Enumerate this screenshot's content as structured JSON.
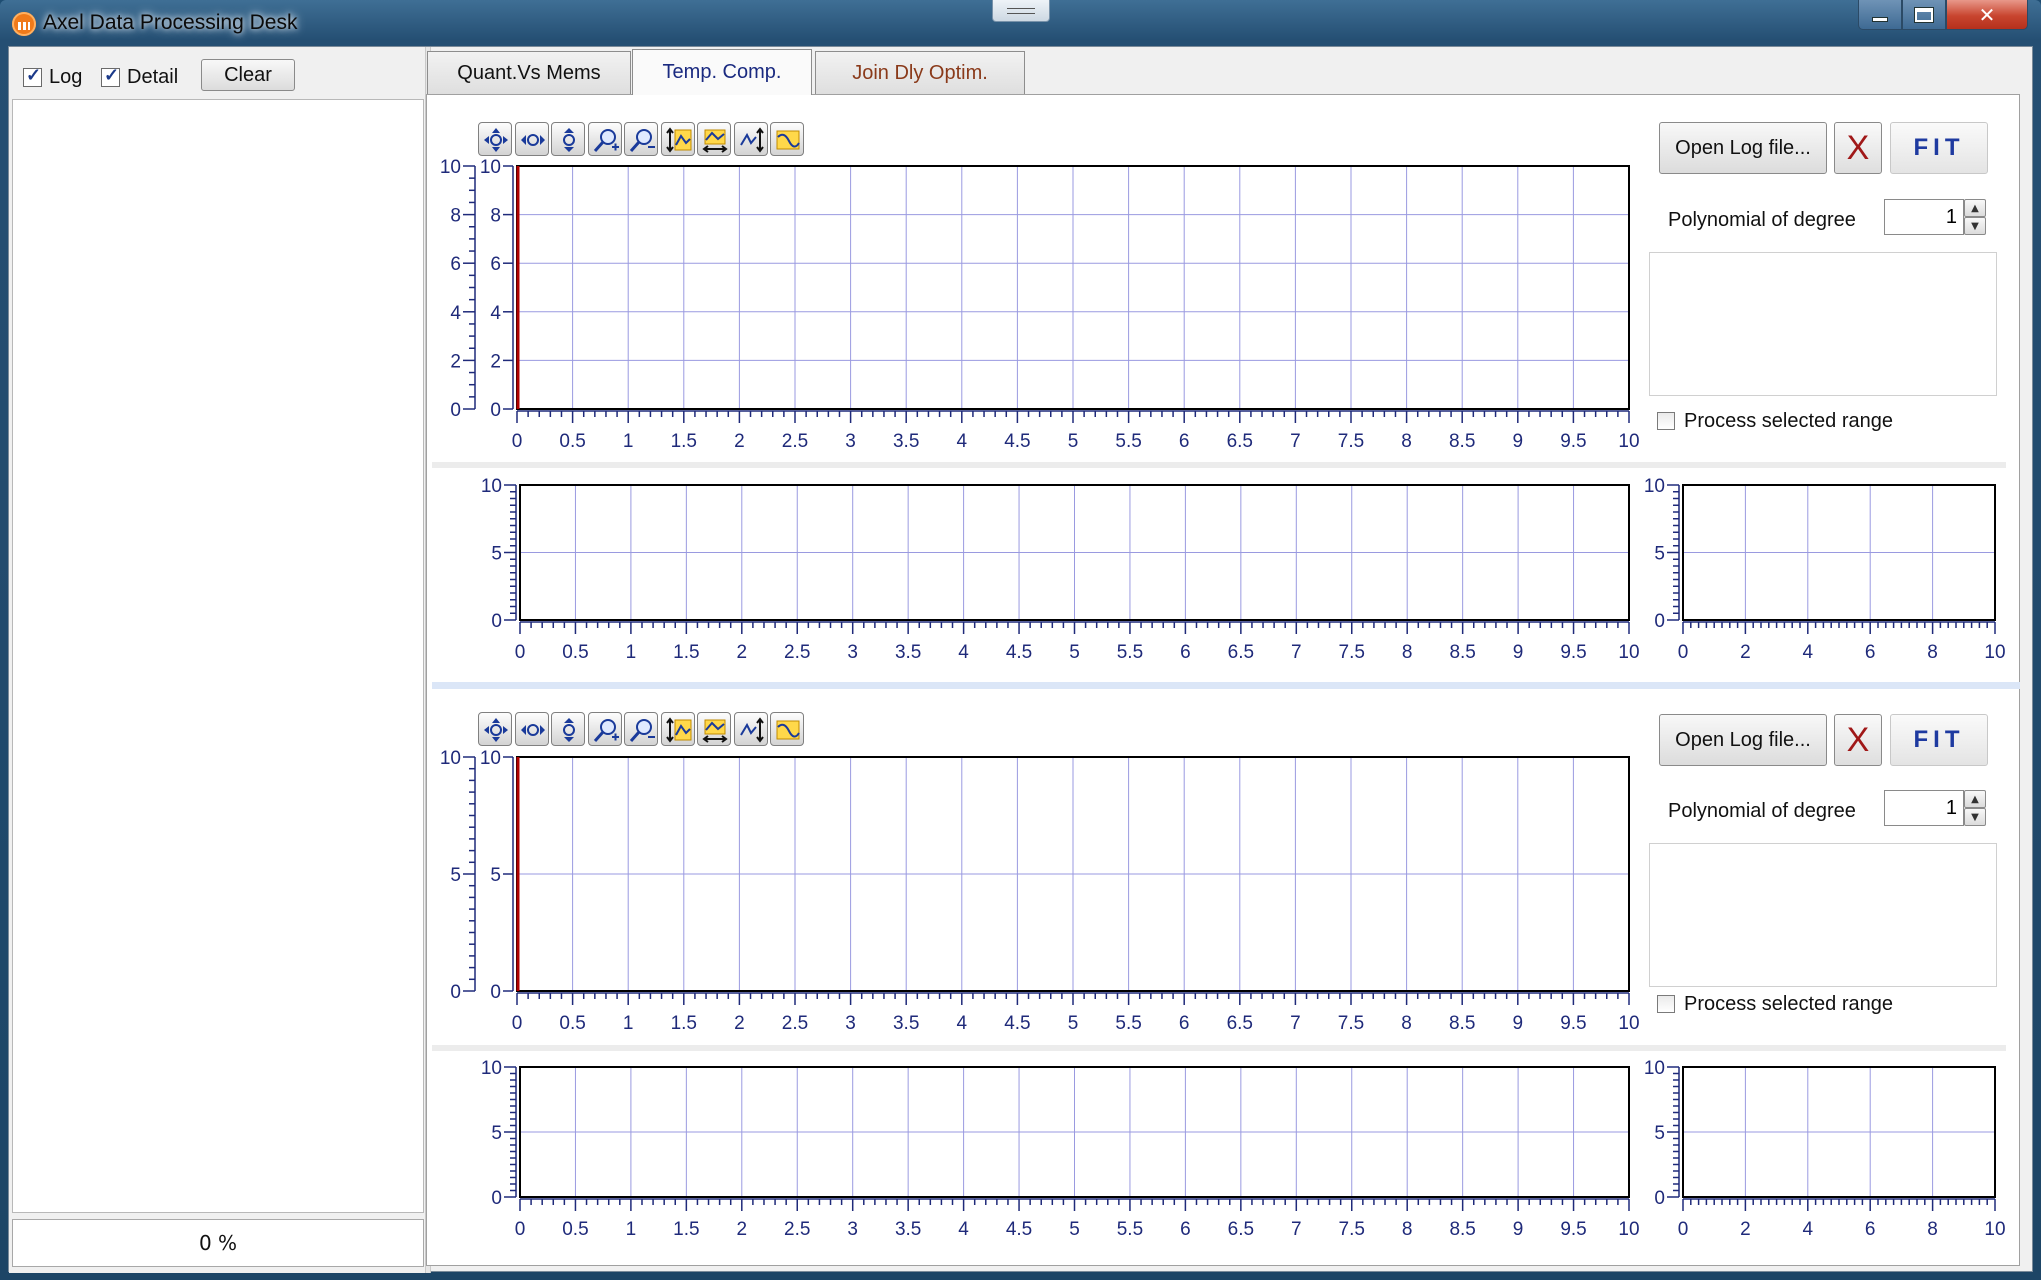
{
  "window": {
    "title": "Axel Data Processing Desk"
  },
  "left_panel": {
    "log_label": "Log",
    "log_checked": true,
    "detail_label": "Detail",
    "detail_checked": true,
    "clear_label": "Clear",
    "progress_text": "0 %"
  },
  "tabs": [
    {
      "label": "Quant.Vs Mems",
      "active": false
    },
    {
      "label": "Temp. Comp.",
      "active": true
    },
    {
      "label": "Join Dly Optim.",
      "active": false
    }
  ],
  "toolbar_icons": [
    "pan-icon",
    "pan-horizontal-icon",
    "pan-vertical-icon",
    "zoom-in-icon",
    "zoom-out-icon",
    "fit-vertical-icon",
    "fit-horizontal-icon",
    "fit-all-icon",
    "select-curve-icon"
  ],
  "sections": [
    {
      "open_log_label": "Open Log file...",
      "clear_x_label": "X",
      "fit_label": "FIT",
      "poly_label": "Polynomial of degree",
      "poly_degree": "1",
      "process_range_label": "Process selected range",
      "process_range_checked": false
    },
    {
      "open_log_label": "Open Log file...",
      "clear_x_label": "X",
      "fit_label": "FIT",
      "poly_label": "Polynomial of degree",
      "poly_degree": "1",
      "process_range_label": "Process selected range",
      "process_range_checked": false
    }
  ],
  "chart_data": [
    {
      "type": "line",
      "series": [],
      "xlim": [
        0,
        10
      ],
      "ylim": [
        0,
        10
      ],
      "x_ticks": [
        "0",
        "0.5",
        "1",
        "1.5",
        "2",
        "2.5",
        "3",
        "3.5",
        "4",
        "4.5",
        "5",
        "5.5",
        "6",
        "6.5",
        "7",
        "7.5",
        "8",
        "8.5",
        "9",
        "9.5",
        "10"
      ],
      "y_ticks": [
        "0",
        "2",
        "4",
        "6",
        "8",
        "10"
      ],
      "grid": true,
      "colors": {
        "grid": "#9a9ae0",
        "frame": "#000000",
        "y_marker": "#b00000"
      }
    },
    {
      "type": "line",
      "series": [],
      "xlim": [
        0,
        10
      ],
      "ylim": [
        0,
        10
      ],
      "x_ticks": [
        "0",
        "0.5",
        "1",
        "1.5",
        "2",
        "2.5",
        "3",
        "3.5",
        "4",
        "4.5",
        "5",
        "5.5",
        "6",
        "6.5",
        "7",
        "7.5",
        "8",
        "8.5",
        "9",
        "9.5",
        "10"
      ],
      "y_ticks": [
        "0",
        "5",
        "10"
      ],
      "grid": true
    },
    {
      "type": "line",
      "series": [],
      "xlim": [
        0,
        10
      ],
      "ylim": [
        0,
        10
      ],
      "x_ticks": [
        "0",
        "2",
        "4",
        "6",
        "8",
        "10"
      ],
      "y_ticks": [
        "0",
        "5",
        "10"
      ],
      "grid": true
    },
    {
      "type": "line",
      "series": [],
      "xlim": [
        0,
        10
      ],
      "ylim": [
        0,
        10
      ],
      "x_ticks": [
        "0",
        "0.5",
        "1",
        "1.5",
        "2",
        "2.5",
        "3",
        "3.5",
        "4",
        "4.5",
        "5",
        "5.5",
        "6",
        "6.5",
        "7",
        "7.5",
        "8",
        "8.5",
        "9",
        "9.5",
        "10"
      ],
      "y_ticks": [
        "0",
        "5",
        "10"
      ],
      "grid": true
    },
    {
      "type": "line",
      "series": [],
      "xlim": [
        0,
        10
      ],
      "ylim": [
        0,
        10
      ],
      "x_ticks": [
        "0",
        "0.5",
        "1",
        "1.5",
        "2",
        "2.5",
        "3",
        "3.5",
        "4",
        "4.5",
        "5",
        "5.5",
        "6",
        "6.5",
        "7",
        "7.5",
        "8",
        "8.5",
        "9",
        "9.5",
        "10"
      ],
      "y_ticks": [
        "0",
        "5",
        "10"
      ],
      "grid": true
    },
    {
      "type": "line",
      "series": [],
      "xlim": [
        0,
        10
      ],
      "ylim": [
        0,
        10
      ],
      "x_ticks": [
        "0",
        "2",
        "4",
        "6",
        "8",
        "10"
      ],
      "y_ticks": [
        "0",
        "5",
        "10"
      ],
      "grid": true
    }
  ]
}
